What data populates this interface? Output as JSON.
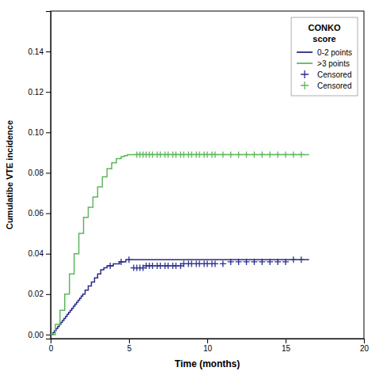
{
  "chart_data": {
    "type": "line",
    "xlabel": "Time (months)",
    "ylabel": "Cumulatibe VTE incidence",
    "xlim": [
      0,
      20
    ],
    "ylim": [
      -0.002,
      0.16
    ],
    "xticks": [
      0,
      5,
      10,
      15,
      20
    ],
    "yticks": [
      {
        "value": 0,
        "label": "0.00"
      },
      {
        "value": 0.02,
        "label": "0.02"
      },
      {
        "value": 0.04,
        "label": "0.04"
      },
      {
        "value": 0.06,
        "label": "0.06"
      },
      {
        "value": 0.08,
        "label": "0.08"
      },
      {
        "value": 0.1,
        "label": "0.10"
      },
      {
        "value": 0.12,
        "label": "0.12"
      },
      {
        "value": 0.14,
        "label": "0.14"
      }
    ],
    "grid": false,
    "legend": "top-right",
    "legend_title": "CONKO\nscore",
    "series": [
      {
        "name": "0-2 points",
        "type": "step",
        "color": "#2b2b8a",
        "x": [
          0,
          0.15,
          0.25,
          0.35,
          0.45,
          0.55,
          0.65,
          0.75,
          0.85,
          0.95,
          1.05,
          1.15,
          1.25,
          1.35,
          1.45,
          1.55,
          1.65,
          1.75,
          1.85,
          1.95,
          2.05,
          2.2,
          2.4,
          2.6,
          2.8,
          3.0,
          3.2,
          3.4,
          3.6,
          3.8,
          4.0,
          4.2,
          4.4,
          4.6,
          4.8,
          5.0,
          5.5,
          6.0,
          6.5,
          7.0,
          16.5
        ],
        "values": [
          0,
          0.001,
          0.002,
          0.003,
          0.004,
          0.005,
          0.006,
          0.007,
          0.008,
          0.009,
          0.01,
          0.011,
          0.012,
          0.013,
          0.014,
          0.015,
          0.016,
          0.017,
          0.018,
          0.019,
          0.02,
          0.022,
          0.024,
          0.026,
          0.028,
          0.03,
          0.032,
          0.033,
          0.034,
          0.034,
          0.035,
          0.035,
          0.036,
          0.036,
          0.037,
          0.037,
          0.037,
          0.037,
          0.037,
          0.037,
          0.037
        ]
      },
      {
        "name": ">3 points",
        "type": "step",
        "color": "#5cb85c",
        "x": [
          0,
          0.3,
          0.6,
          0.9,
          1.2,
          1.5,
          1.8,
          2.1,
          2.4,
          2.7,
          3.0,
          3.3,
          3.6,
          3.9,
          4.2,
          4.5,
          4.7,
          4.9,
          5.1,
          5.3,
          5.5,
          16.5
        ],
        "values": [
          0,
          0.005,
          0.012,
          0.02,
          0.03,
          0.04,
          0.05,
          0.058,
          0.063,
          0.068,
          0.073,
          0.078,
          0.082,
          0.085,
          0.087,
          0.088,
          0.0885,
          0.089,
          0.089,
          0.089,
          0.089,
          0.089
        ]
      },
      {
        "name": "Censored",
        "type": "scatter",
        "marker": "plus",
        "color": "#2b2b8a",
        "x": [
          3.8,
          4.5,
          5.0,
          5.3,
          5.5,
          5.7,
          5.9,
          6.1,
          6.3,
          6.5,
          6.8,
          7.0,
          7.3,
          7.5,
          7.8,
          8.0,
          8.3,
          8.5,
          8.8,
          9.0,
          9.3,
          9.5,
          9.8,
          10.0,
          10.3,
          10.5,
          11.0,
          11.5,
          12.0,
          12.5,
          13.0,
          13.5,
          14.0,
          14.5,
          15.0,
          15.5,
          16.0
        ],
        "values": [
          0.034,
          0.036,
          0.037,
          0.033,
          0.033,
          0.033,
          0.033,
          0.034,
          0.034,
          0.034,
          0.034,
          0.034,
          0.034,
          0.034,
          0.034,
          0.034,
          0.034,
          0.035,
          0.035,
          0.035,
          0.035,
          0.035,
          0.035,
          0.035,
          0.035,
          0.035,
          0.035,
          0.036,
          0.036,
          0.036,
          0.036,
          0.036,
          0.036,
          0.036,
          0.036,
          0.037,
          0.037
        ]
      },
      {
        "name": "Censored",
        "type": "scatter",
        "marker": "plus",
        "color": "#5cb85c",
        "x": [
          5.5,
          5.7,
          5.9,
          6.1,
          6.3,
          6.5,
          6.8,
          7.0,
          7.3,
          7.5,
          7.8,
          8.0,
          8.3,
          8.5,
          8.8,
          9.0,
          9.3,
          9.5,
          9.8,
          10.0,
          10.3,
          10.5,
          11.0,
          11.5,
          12.0,
          12.5,
          13.0,
          13.5,
          14.0,
          14.5,
          15.0,
          15.5,
          16.0
        ],
        "values": [
          0.089,
          0.089,
          0.089,
          0.089,
          0.089,
          0.089,
          0.089,
          0.089,
          0.089,
          0.089,
          0.089,
          0.089,
          0.089,
          0.089,
          0.089,
          0.089,
          0.089,
          0.089,
          0.089,
          0.089,
          0.089,
          0.089,
          0.089,
          0.089,
          0.089,
          0.089,
          0.089,
          0.089,
          0.089,
          0.089,
          0.089,
          0.089,
          0.089
        ]
      }
    ]
  }
}
